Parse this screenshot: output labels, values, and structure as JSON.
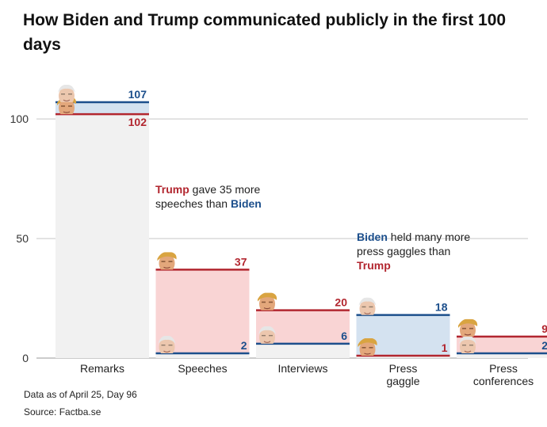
{
  "title": "How Biden and Trump communicated publicly in the first 100 days",
  "footnote": "Data as of April 25, Day 96",
  "source": "Source: Factba.se",
  "colors": {
    "trump": "#b2262f",
    "biden": "#1c4f8c",
    "trump_fill": "#f9d4d4",
    "biden_fill": "#d4e2f0",
    "tie_fill": "#f1f1f1",
    "grid": "#c8c8c8"
  },
  "icons": {
    "trump": "trump-face-icon",
    "biden": "biden-face-icon"
  },
  "annotations": {
    "speeches": {
      "part1": "Trump",
      "part2": " gave 35 more speeches than ",
      "part3": "Biden"
    },
    "gaggle": {
      "part1": "Biden",
      "part2": " held many more press gaggles than ",
      "part3": "Trump"
    }
  },
  "chart_data": {
    "type": "bar",
    "categories": [
      [
        "Remarks"
      ],
      [
        "Speeches"
      ],
      [
        "Interviews"
      ],
      [
        "Press",
        "gaggle"
      ],
      [
        "Press",
        "conferences"
      ]
    ],
    "series": [
      {
        "name": "Biden",
        "values": [
          107,
          2,
          6,
          18,
          2
        ]
      },
      {
        "name": "Trump",
        "values": [
          102,
          37,
          20,
          1,
          9
        ]
      }
    ],
    "ylim": [
      0,
      110
    ],
    "yticks": [
      0,
      50,
      100
    ],
    "grid": true
  }
}
